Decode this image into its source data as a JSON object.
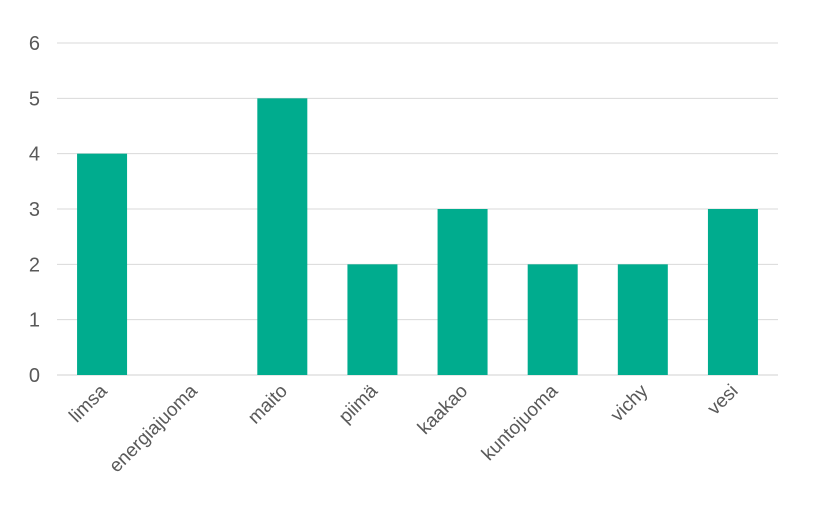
{
  "chart_data": {
    "type": "bar",
    "categories": [
      "limsa",
      "energiajuoma",
      "maito",
      "piimä",
      "kaakao",
      "kuntojuoma",
      "vichy",
      "vesi"
    ],
    "values": [
      4,
      0,
      5,
      2,
      3,
      2,
      2,
      3
    ],
    "title": "",
    "xlabel": "",
    "ylabel": "",
    "ylim": [
      0,
      6
    ],
    "yticks": [
      0,
      1,
      2,
      3,
      4,
      5,
      6
    ],
    "grid": true,
    "legend": "none",
    "bar_color": "#00AC8E"
  }
}
